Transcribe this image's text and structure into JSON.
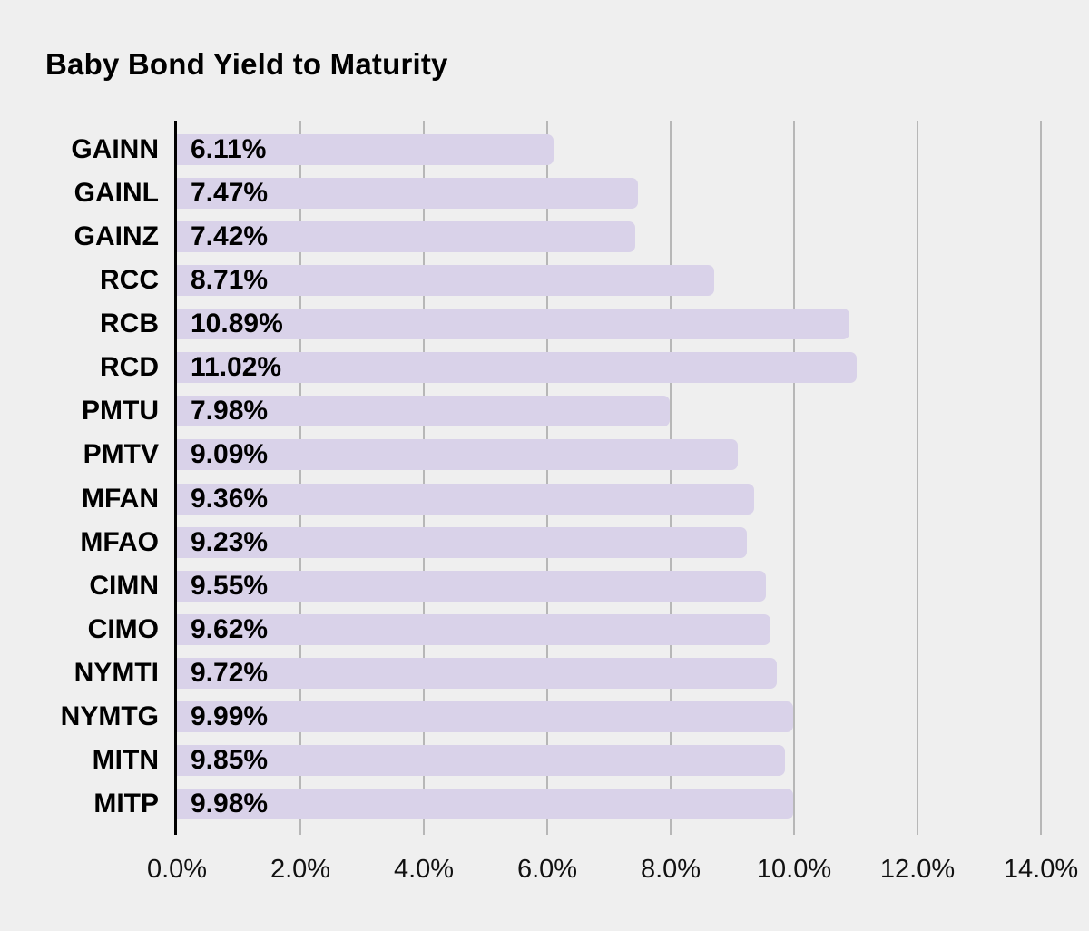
{
  "chart_data": {
    "type": "bar",
    "orientation": "horizontal",
    "title": "Baby Bond Yield to Maturity",
    "categories": [
      "GAINN",
      "GAINL",
      "GAINZ",
      "RCC",
      "RCB",
      "RCD",
      "PMTU",
      "PMTV",
      "MFAN",
      "MFAO",
      "CIMN",
      "CIMO",
      "NYMTI",
      "NYMTG",
      "MITN",
      "MITP"
    ],
    "values": [
      6.11,
      7.47,
      7.42,
      8.71,
      10.89,
      11.02,
      7.98,
      9.09,
      9.36,
      9.23,
      9.55,
      9.62,
      9.72,
      9.99,
      9.85,
      9.98
    ],
    "value_labels": [
      "6.11%",
      "7.47%",
      "7.42%",
      "8.71%",
      "10.89%",
      "11.02%",
      "7.98%",
      "9.09%",
      "9.36%",
      "9.23%",
      "9.55%",
      "9.62%",
      "9.72%",
      "9.99%",
      "9.85%",
      "9.98%"
    ],
    "x_ticks": [
      {
        "value": 0,
        "label": "0.0%"
      },
      {
        "value": 2,
        "label": "2.0%"
      },
      {
        "value": 4,
        "label": "4.0%"
      },
      {
        "value": 6,
        "label": "6.0%"
      },
      {
        "value": 8,
        "label": "8.0%"
      },
      {
        "value": 10,
        "label": "10.0%"
      },
      {
        "value": 12,
        "label": "12.0%"
      },
      {
        "value": 14,
        "label": "14.0%"
      }
    ],
    "xlim": [
      0,
      14
    ],
    "xlabel": "",
    "ylabel": "",
    "grid": true,
    "legend": "none",
    "colors": {
      "background": "#efefef",
      "bar": "#d9d2e9",
      "gridline": "#b7b7b7",
      "axis_line": "#000000",
      "text": "#000000"
    }
  }
}
